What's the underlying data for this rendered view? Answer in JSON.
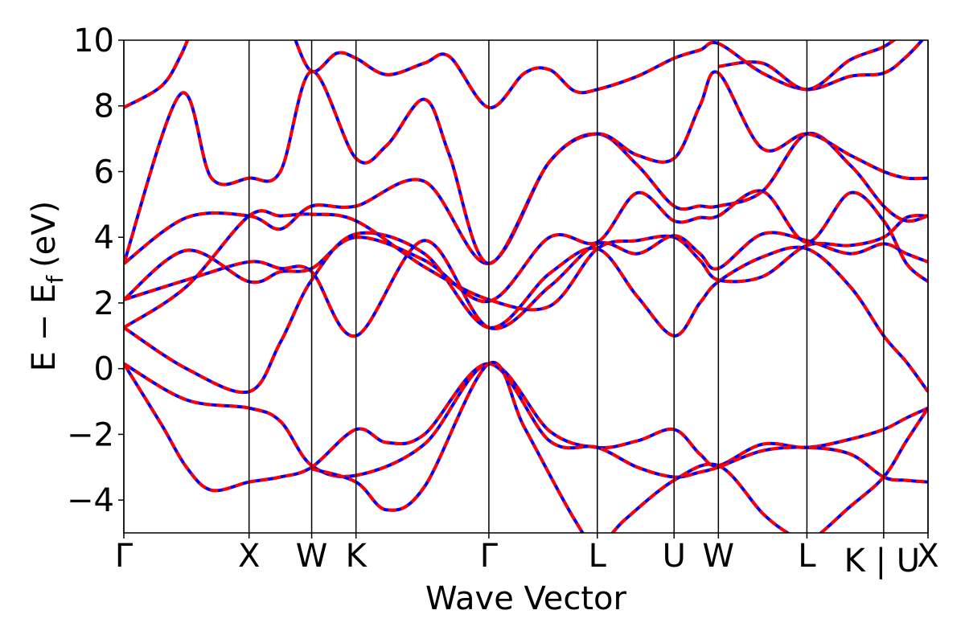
{
  "chart_data": {
    "type": "line",
    "title": "",
    "xlabel": "Wave Vector",
    "ylabel_main": "E − E",
    "ylabel_sub": "f",
    "ylabel_unit": "(eV)",
    "ylim": [
      -5,
      10
    ],
    "y_ticks": [
      -4,
      -2,
      0,
      2,
      4,
      6,
      8,
      10
    ],
    "y_tick_labels": [
      "−4",
      "−2",
      "0",
      "2",
      "4",
      "6",
      "8",
      "10"
    ],
    "kpath": [
      {
        "label": "Γ",
        "x": 0.0
      },
      {
        "label": "X",
        "x": 1.0
      },
      {
        "label": "W",
        "x": 1.5
      },
      {
        "label": "K",
        "x": 1.854
      },
      {
        "label": "Γ",
        "x": 2.915
      },
      {
        "label": "L",
        "x": 3.781
      },
      {
        "label": "U",
        "x": 4.394
      },
      {
        "label": "W",
        "x": 4.748
      },
      {
        "label": "L",
        "x": 5.455
      },
      {
        "label": "K | U",
        "x": 6.068
      },
      {
        "label": "X",
        "x": 6.422
      }
    ],
    "xlim": [
      0,
      6.422
    ],
    "series_colors": {
      "overlay": "#ff0000",
      "underlay": "#0000ff"
    },
    "series": [
      {
        "values": [
          [
            0.0,
            0.15
          ],
          [
            0.5,
            -0.95
          ],
          [
            1.0,
            -1.2
          ],
          [
            1.25,
            -1.6
          ],
          [
            1.5,
            -2.95
          ],
          [
            1.854,
            -3.25
          ],
          [
            2.4,
            -2.3
          ],
          [
            2.915,
            0.15
          ],
          [
            3.4,
            -1.9
          ],
          [
            3.781,
            -2.4
          ],
          [
            4.1,
            -2.2
          ],
          [
            4.394,
            -1.85
          ],
          [
            4.6,
            -2.6
          ],
          [
            4.748,
            -2.95
          ],
          [
            5.1,
            -2.3
          ],
          [
            5.455,
            -2.4
          ],
          [
            5.8,
            -2.15
          ],
          [
            6.068,
            -1.85
          ],
          [
            6.25,
            -1.5
          ],
          [
            6.422,
            -1.2
          ]
        ]
      },
      {
        "values": [
          [
            0.0,
            0.15
          ],
          [
            0.3,
            -1.7
          ],
          [
            0.5,
            -3.0
          ],
          [
            0.7,
            -3.7
          ],
          [
            1.0,
            -3.45
          ],
          [
            1.25,
            -3.3
          ],
          [
            1.5,
            -3.0
          ],
          [
            1.854,
            -1.85
          ],
          [
            2.1,
            -2.25
          ],
          [
            2.4,
            -2.0
          ],
          [
            2.915,
            0.15
          ],
          [
            3.4,
            -2.2
          ],
          [
            3.781,
            -2.4
          ],
          [
            4.1,
            -3.0
          ],
          [
            4.394,
            -3.3
          ],
          [
            4.6,
            -3.15
          ],
          [
            4.748,
            -3.0
          ],
          [
            5.1,
            -2.5
          ],
          [
            5.455,
            -2.4
          ],
          [
            5.8,
            -2.6
          ],
          [
            6.068,
            -3.3
          ],
          [
            6.25,
            -3.4
          ],
          [
            6.422,
            -3.45
          ]
        ]
      },
      {
        "values": [
          [
            1.5,
            -3.05
          ],
          [
            1.854,
            -3.45
          ],
          [
            2.1,
            -4.3
          ],
          [
            2.4,
            -3.6
          ],
          [
            2.915,
            0.15
          ],
          [
            3.2,
            -1.8
          ],
          [
            3.6,
            -4.6
          ],
          [
            3.781,
            -5.4
          ],
          [
            4.0,
            -4.6
          ],
          [
            4.394,
            -3.4
          ],
          [
            4.748,
            -2.95
          ],
          [
            5.1,
            -4.4
          ],
          [
            5.3,
            -5.0
          ],
          [
            5.455,
            -5.3
          ],
          [
            5.8,
            -4.2
          ],
          [
            6.068,
            -3.3
          ],
          [
            6.25,
            -2.2
          ],
          [
            6.422,
            -1.2
          ]
        ]
      },
      {
        "values": [
          [
            0.0,
            1.25
          ],
          [
            0.5,
            0.0
          ],
          [
            1.0,
            -0.7
          ],
          [
            1.25,
            0.8
          ],
          [
            1.5,
            2.7
          ],
          [
            1.854,
            4.1
          ],
          [
            2.4,
            3.5
          ],
          [
            2.915,
            1.25
          ],
          [
            3.4,
            2.9
          ],
          [
            3.781,
            3.65
          ],
          [
            4.1,
            2.2
          ],
          [
            4.394,
            1.0
          ],
          [
            4.6,
            2.0
          ],
          [
            4.748,
            2.65
          ],
          [
            5.1,
            3.4
          ],
          [
            5.455,
            3.65
          ],
          [
            5.8,
            2.5
          ],
          [
            6.068,
            1.0
          ],
          [
            6.25,
            0.2
          ],
          [
            6.422,
            -0.7
          ]
        ]
      },
      {
        "values": [
          [
            0.0,
            1.25
          ],
          [
            0.5,
            2.5
          ],
          [
            1.0,
            4.65
          ],
          [
            1.25,
            4.65
          ],
          [
            1.5,
            4.7
          ],
          [
            1.854,
            4.5
          ],
          [
            2.4,
            3.1
          ],
          [
            2.915,
            2.1
          ],
          [
            3.4,
            1.9
          ],
          [
            3.781,
            3.65
          ],
          [
            4.1,
            3.9
          ],
          [
            4.394,
            4.0
          ],
          [
            4.6,
            3.3
          ],
          [
            4.748,
            2.7
          ],
          [
            5.1,
            2.8
          ],
          [
            5.455,
            3.75
          ],
          [
            5.8,
            3.75
          ],
          [
            6.068,
            4.0
          ],
          [
            6.25,
            4.6
          ],
          [
            6.422,
            4.65
          ]
        ]
      },
      {
        "values": [
          [
            0.0,
            2.1
          ],
          [
            0.5,
            2.7
          ],
          [
            1.0,
            3.25
          ],
          [
            1.25,
            3.05
          ],
          [
            1.5,
            2.95
          ],
          [
            1.854,
            1.0
          ],
          [
            2.4,
            3.9
          ],
          [
            2.915,
            1.25
          ],
          [
            3.4,
            2.5
          ],
          [
            3.781,
            3.8
          ],
          [
            4.1,
            3.5
          ],
          [
            4.394,
            4.05
          ],
          [
            4.6,
            3.5
          ],
          [
            4.748,
            3.05
          ],
          [
            5.1,
            4.1
          ],
          [
            5.455,
            3.9
          ],
          [
            5.8,
            3.5
          ],
          [
            6.068,
            3.8
          ],
          [
            6.25,
            3.5
          ],
          [
            6.422,
            3.25
          ]
        ]
      },
      {
        "values": [
          [
            0.0,
            2.1
          ],
          [
            0.5,
            3.6
          ],
          [
            1.0,
            2.65
          ],
          [
            1.25,
            2.95
          ],
          [
            1.5,
            3.05
          ],
          [
            1.854,
            4.0
          ],
          [
            2.4,
            3.3
          ],
          [
            2.915,
            2.05
          ],
          [
            3.4,
            4.0
          ],
          [
            3.781,
            3.85
          ],
          [
            4.1,
            5.35
          ],
          [
            4.394,
            4.5
          ],
          [
            4.6,
            4.6
          ],
          [
            4.748,
            4.65
          ],
          [
            5.1,
            5.4
          ],
          [
            5.455,
            3.85
          ],
          [
            5.8,
            5.35
          ],
          [
            6.068,
            4.5
          ],
          [
            6.25,
            3.2
          ],
          [
            6.422,
            2.65
          ]
        ]
      },
      {
        "values": [
          [
            0.0,
            3.2
          ],
          [
            0.5,
            4.6
          ],
          [
            1.0,
            4.65
          ],
          [
            1.25,
            4.25
          ],
          [
            1.5,
            4.95
          ],
          [
            1.854,
            4.95
          ],
          [
            2.4,
            5.7
          ],
          [
            2.915,
            3.2
          ],
          [
            3.4,
            6.3
          ],
          [
            3.781,
            7.15
          ],
          [
            4.1,
            6.2
          ],
          [
            4.394,
            4.95
          ],
          [
            4.6,
            4.95
          ],
          [
            4.748,
            4.95
          ],
          [
            5.1,
            5.4
          ],
          [
            5.455,
            7.15
          ],
          [
            5.8,
            6.2
          ],
          [
            6.068,
            4.95
          ],
          [
            6.25,
            4.5
          ],
          [
            6.422,
            4.65
          ]
        ]
      },
      {
        "values": [
          [
            0.0,
            3.2
          ],
          [
            0.45,
            8.35
          ],
          [
            0.7,
            5.8
          ],
          [
            1.0,
            5.8
          ],
          [
            1.25,
            6.0
          ],
          [
            1.5,
            9.05
          ],
          [
            1.854,
            6.4
          ],
          [
            2.1,
            6.8
          ],
          [
            2.4,
            8.2
          ],
          [
            2.6,
            6.5
          ],
          [
            2.915,
            3.2
          ],
          [
            3.4,
            6.3
          ],
          [
            3.781,
            7.15
          ],
          [
            4.1,
            6.5
          ],
          [
            4.394,
            6.4
          ],
          [
            4.6,
            8.0
          ],
          [
            4.748,
            9.0
          ],
          [
            5.1,
            6.7
          ],
          [
            5.455,
            7.15
          ],
          [
            5.8,
            6.5
          ],
          [
            6.068,
            6.0
          ],
          [
            6.25,
            5.8
          ],
          [
            6.422,
            5.8
          ]
        ]
      },
      {
        "values": [
          [
            0.0,
            7.95
          ],
          [
            0.3,
            8.6
          ],
          [
            0.45,
            9.5
          ],
          [
            0.55,
            10.4
          ]
        ]
      },
      {
        "values": [
          [
            1.35,
            10.2
          ],
          [
            1.5,
            9.05
          ],
          [
            1.7,
            9.6
          ],
          [
            1.854,
            9.45
          ],
          [
            2.1,
            8.95
          ],
          [
            2.4,
            9.3
          ],
          [
            2.6,
            9.5
          ],
          [
            2.915,
            7.95
          ],
          [
            3.2,
            9.0
          ],
          [
            3.4,
            9.1
          ],
          [
            3.6,
            8.45
          ],
          [
            3.781,
            8.5
          ],
          [
            4.1,
            8.9
          ],
          [
            4.394,
            9.45
          ],
          [
            4.6,
            9.7
          ],
          [
            4.748,
            9.9
          ],
          [
            5.1,
            9.0
          ],
          [
            5.455,
            8.5
          ],
          [
            5.8,
            8.9
          ],
          [
            6.068,
            9.0
          ],
          [
            6.25,
            9.5
          ],
          [
            6.422,
            10.2
          ]
        ]
      },
      {
        "values": [
          [
            4.748,
            9.2
          ],
          [
            5.1,
            9.3
          ],
          [
            5.455,
            8.5
          ],
          [
            5.8,
            9.4
          ],
          [
            6.068,
            9.8
          ],
          [
            6.25,
            10.3
          ]
        ]
      }
    ]
  }
}
